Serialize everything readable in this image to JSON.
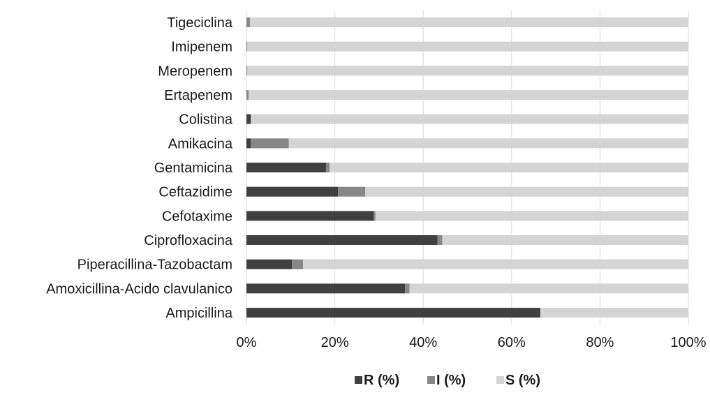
{
  "chart_data": {
    "type": "bar",
    "orientation": "horizontal",
    "stacked": "100%",
    "categories": [
      "Tigeciclina",
      "Imipenem",
      "Meropenem",
      "Ertapenem",
      "Colistina",
      "Amikacina",
      "Gentamicina",
      "Ceftazidime",
      "Cefotaxime",
      "Ciprofloxacina",
      "Piperacillina-Tazobactam",
      "Amoxicillina-Acido clavulanico",
      "Ampicillina"
    ],
    "series": [
      {
        "name": "R (%)",
        "color": "#404040",
        "values": [
          0.0,
          0.0,
          0.0,
          0.0,
          1.0,
          1.0,
          18.0,
          20.7,
          28.8,
          43.2,
          10.3,
          35.9,
          66.5
        ]
      },
      {
        "name": "I (%)",
        "color": "#878787",
        "values": [
          0.8,
          0.2,
          0.2,
          0.5,
          0.0,
          8.6,
          0.8,
          6.2,
          0.4,
          1.1,
          2.5,
          1.0,
          0.0
        ]
      },
      {
        "name": "S (%)",
        "color": "#d4d4d4",
        "values": [
          99.2,
          99.8,
          99.8,
          99.5,
          99.0,
          90.4,
          81.2,
          73.1,
          70.8,
          55.7,
          87.2,
          63.1,
          33.5
        ]
      }
    ],
    "xticks": [
      "0%",
      "20%",
      "40%",
      "60%",
      "80%",
      "100%"
    ],
    "xlim": [
      0,
      100
    ],
    "grid": true,
    "legend": "bottom"
  }
}
